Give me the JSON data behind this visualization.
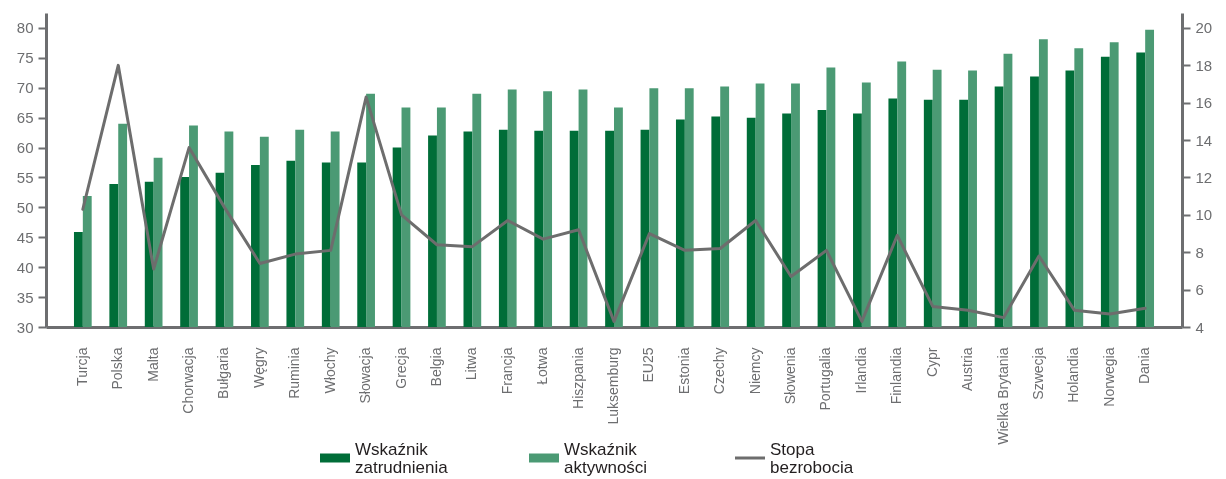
{
  "chart_data": {
    "type": "bar",
    "categories": [
      "Turcja",
      "Polska",
      "Malta",
      "Chorwacja",
      "Bułgaria",
      "Węgry",
      "Ruminia",
      "Włochy",
      "Słowacja",
      "Grecja",
      "Belgia",
      "Litwa",
      "Francja",
      "Łotwa",
      "Hiszpania",
      "Luksemburg",
      "EU25",
      "Estonia",
      "Czechy",
      "Niemcy",
      "Słowenia",
      "Portugalia",
      "Irlandia",
      "Finlandia",
      "Cypr",
      "Austria",
      "Wielka Brytania",
      "Szwecja",
      "Holandia",
      "Norwegia",
      "Dania"
    ],
    "series": [
      {
        "name": "Wskaźnik zatrudnienia",
        "color": "#006d38",
        "values": [
          45.9,
          53.9,
          54.3,
          55.1,
          55.8,
          57.1,
          57.8,
          57.5,
          57.5,
          60.0,
          62.0,
          62.7,
          63.0,
          62.8,
          62.8,
          62.8,
          63.0,
          64.7,
          65.2,
          65.0,
          65.7,
          66.3,
          65.7,
          68.2,
          68.0,
          68.0,
          70.2,
          71.9,
          72.9,
          75.2,
          75.9
        ]
      },
      {
        "name": "Wskaźnik aktywności",
        "color": "#4b9a74",
        "values": [
          51.9,
          64.0,
          58.3,
          63.7,
          62.7,
          61.8,
          63.0,
          62.7,
          69.0,
          66.7,
          66.7,
          69.0,
          69.7,
          69.4,
          69.7,
          66.7,
          69.9,
          69.9,
          70.2,
          70.7,
          70.7,
          73.4,
          70.9,
          74.4,
          73.0,
          72.9,
          75.7,
          78.1,
          76.6,
          77.6,
          79.7
        ]
      },
      {
        "name": "Stopa bezrobocia",
        "type": "line",
        "axis": "y2",
        "color": "#6d6d6d",
        "values": [
          10.3,
          18.0,
          7.1,
          13.6,
          10.4,
          7.4,
          7.9,
          8.1,
          16.3,
          10.0,
          8.4,
          8.3,
          9.7,
          8.7,
          9.2,
          4.3,
          9.0,
          8.1,
          8.2,
          9.7,
          6.7,
          8.1,
          4.3,
          8.9,
          5.1,
          4.9,
          4.5,
          7.8,
          4.9,
          4.7,
          5.0
        ]
      }
    ],
    "ylim": [
      30,
      82.5
    ],
    "yticks": [
      30,
      35,
      40,
      45,
      50,
      55,
      60,
      65,
      70,
      75,
      80
    ],
    "y2lim": [
      4,
      20.8
    ],
    "y2ticks": [
      4,
      6,
      8,
      10,
      12,
      14,
      16,
      18,
      20
    ],
    "grid": false,
    "legend": "bottom",
    "line_style": "solid"
  }
}
